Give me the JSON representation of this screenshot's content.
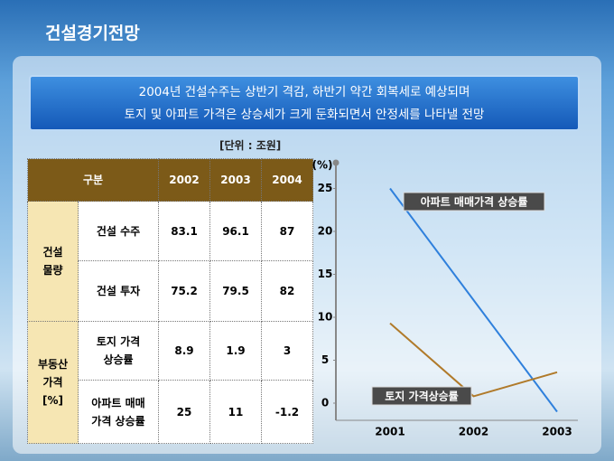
{
  "header": {
    "title": "건설경기전망"
  },
  "banner": {
    "lines": [
      "2004년 건설수주는 상반기 격감, 하반기 약간 회복세로 예상되며",
      "토지 및 아파트 가격은 상승세가 크게 둔화되면서 안정세를 나타낼 전망"
    ]
  },
  "unit": "[단위 : 조원]",
  "table": {
    "header": [
      "구분",
      "2002",
      "2003",
      "2004"
    ],
    "groups": [
      {
        "label": "건설\n물량",
        "rows": [
          {
            "label": "건설 수주",
            "values": [
              "83.1",
              "96.1",
              "87"
            ]
          },
          {
            "label": "건설 투자",
            "values": [
              "75.2",
              "79.5",
              "82"
            ]
          }
        ]
      },
      {
        "label": "부동산\n가격\n[%]",
        "rows": [
          {
            "label": "토지 가격\n상승률",
            "values": [
              "8.9",
              "1.9",
              "3"
            ]
          },
          {
            "label": "아파트 매매\n가격 상승률",
            "values": [
              "25",
              "11",
              "-1.2"
            ]
          }
        ]
      }
    ]
  },
  "chart_data": {
    "type": "line",
    "y_label": "(%)",
    "categories": [
      "2001",
      "2002",
      "2003"
    ],
    "series": [
      {
        "name": "아파트 매매가격 상승률",
        "color": "#2f80dc",
        "values": [
          25,
          12,
          -1
        ]
      },
      {
        "name": "토지 가격상승률",
        "color": "#b07a2a",
        "values": [
          9.3,
          0.8,
          3.6
        ]
      }
    ],
    "ylim": [
      -2,
      28
    ],
    "yticks": [
      0,
      5,
      10,
      15,
      20,
      25
    ]
  }
}
